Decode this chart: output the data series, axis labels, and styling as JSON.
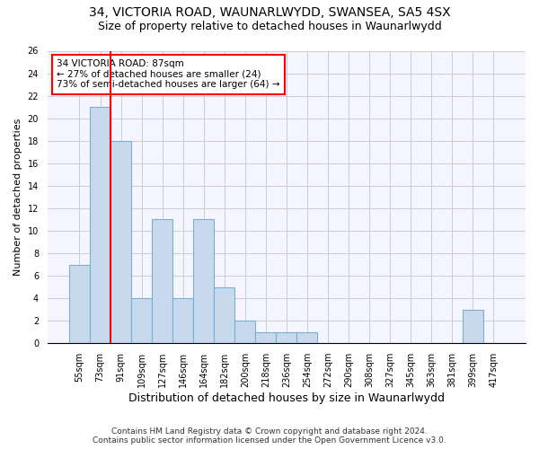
{
  "title1": "34, VICTORIA ROAD, WAUNARLWYDD, SWANSEA, SA5 4SX",
  "title2": "Size of property relative to detached houses in Waunarlwydd",
  "xlabel": "Distribution of detached houses by size in Waunarlwydd",
  "ylabel": "Number of detached properties",
  "categories": [
    "55sqm",
    "73sqm",
    "91sqm",
    "109sqm",
    "127sqm",
    "146sqm",
    "164sqm",
    "182sqm",
    "200sqm",
    "218sqm",
    "236sqm",
    "254sqm",
    "272sqm",
    "290sqm",
    "308sqm",
    "327sqm",
    "345sqm",
    "363sqm",
    "381sqm",
    "399sqm",
    "417sqm"
  ],
  "values": [
    7,
    21,
    18,
    4,
    11,
    4,
    11,
    5,
    2,
    1,
    1,
    1,
    0,
    0,
    0,
    0,
    0,
    0,
    0,
    3,
    0
  ],
  "bar_color": "#c8d9ee",
  "bar_edge_color": "#7aafd4",
  "bar_edge_width": 0.8,
  "property_label": "34 VICTORIA ROAD: 87sqm",
  "annotation_line1": "← 27% of detached houses are smaller (24)",
  "annotation_line2": "73% of semi-detached houses are larger (64) →",
  "annotation_box_color": "white",
  "annotation_box_edge_color": "red",
  "vline_color": "red",
  "vline_x": 1.5,
  "ylim": [
    0,
    26
  ],
  "yticks": [
    0,
    2,
    4,
    6,
    8,
    10,
    12,
    14,
    16,
    18,
    20,
    22,
    24,
    26
  ],
  "grid_color": "#cccccc",
  "bg_color": "#f5f5ff",
  "footer_line1": "Contains HM Land Registry data © Crown copyright and database right 2024.",
  "footer_line2": "Contains public sector information licensed under the Open Government Licence v3.0.",
  "title1_fontsize": 10,
  "title2_fontsize": 9,
  "xlabel_fontsize": 9,
  "ylabel_fontsize": 8,
  "tick_fontsize": 7,
  "footer_fontsize": 6.5,
  "annotation_fontsize": 7.5
}
